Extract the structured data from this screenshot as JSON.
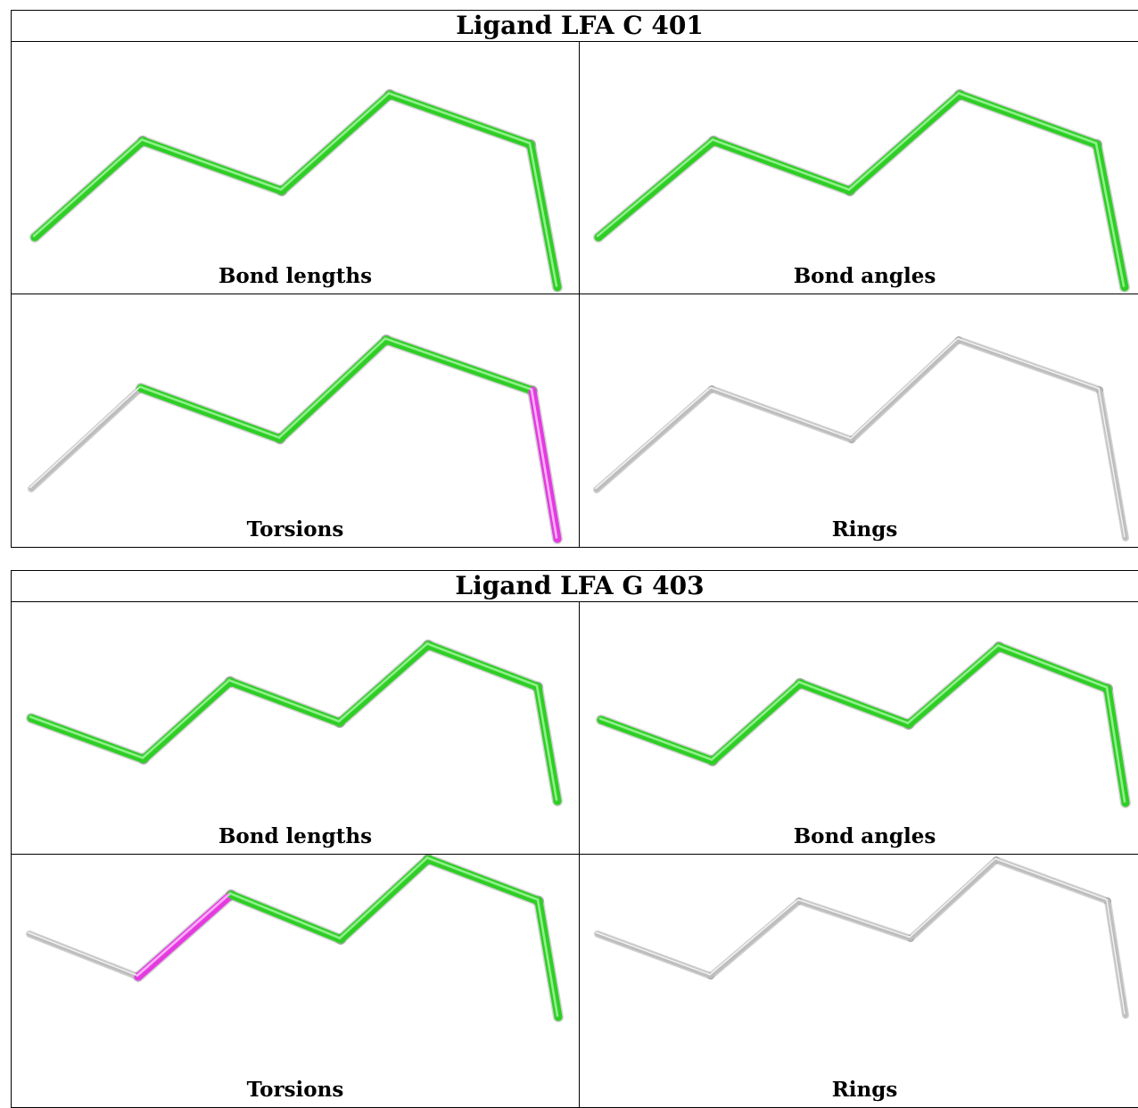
{
  "colors": {
    "ok": "#2fce26",
    "ok_highlight": "#8ff08a",
    "outlier": "#e43be0",
    "outlier_highlight": "#ffb0ff",
    "not_applicable": "#bdbdbd",
    "not_applicable_highlight": "#f2f2f2"
  },
  "ligands": [
    {
      "title": "Ligand LFA C 401",
      "panels": [
        {
          "caption": "Bond lengths",
          "bond_states": [
            "ok",
            "ok",
            "ok",
            "ok",
            "ok",
            "ok"
          ]
        },
        {
          "caption": "Bond angles",
          "bond_states": [
            "ok",
            "ok",
            "ok",
            "ok",
            "ok",
            "ok"
          ]
        },
        {
          "caption": "Torsions",
          "bond_states": [
            "na",
            "ok",
            "ok",
            "ok",
            "outlier",
            "na"
          ]
        },
        {
          "caption": "Rings",
          "bond_states": [
            "na",
            "na",
            "na",
            "na",
            "na",
            "na"
          ]
        }
      ]
    },
    {
      "title": "Ligand LFA G 403",
      "panels": [
        {
          "caption": "Bond lengths",
          "bond_states": [
            "ok",
            "ok",
            "ok",
            "ok",
            "ok",
            "ok",
            "ok"
          ]
        },
        {
          "caption": "Bond angles",
          "bond_states": [
            "ok",
            "ok",
            "ok",
            "ok",
            "ok",
            "ok",
            "ok"
          ]
        },
        {
          "caption": "Torsions",
          "bond_states": [
            "na",
            "outlier",
            "ok",
            "ok",
            "ok",
            "ok",
            "na"
          ]
        },
        {
          "caption": "Rings",
          "bond_states": [
            "na",
            "na",
            "na",
            "na",
            "na",
            "na",
            "na"
          ]
        }
      ]
    }
  ]
}
